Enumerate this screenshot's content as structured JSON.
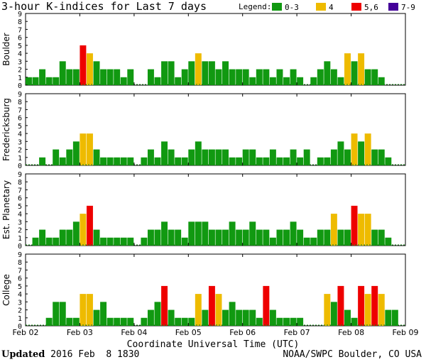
{
  "title": "3-hour K-indices for Last 7 days",
  "legend": {
    "label": "Legend:",
    "items": [
      {
        "label": "0-3",
        "color": "#119911"
      },
      {
        "label": "4",
        "color": "#eebb00"
      },
      {
        "label": "5,6",
        "color": "#ee0000"
      },
      {
        "label": "7-9",
        "color": "#440099"
      }
    ]
  },
  "xlabel": "Coordinate Universal Time (UTC)",
  "footer": {
    "updated_label": "Updated",
    "updated_time": " 2016 Feb  8 1830",
    "credit": "NOAA/SWPC Boulder, CO USA"
  },
  "chart_data": [
    {
      "type": "bar",
      "ylabel": "Boulder",
      "ylim": [
        0,
        9
      ],
      "x_ticks": [
        "Feb 02",
        "Feb 03",
        "Feb 04",
        "Feb 05",
        "Feb 06",
        "Feb 07",
        "Feb 08",
        "Feb 09"
      ],
      "values": [
        1,
        1,
        2,
        1,
        1,
        3,
        2,
        2,
        5,
        4,
        3,
        2,
        2,
        2,
        1,
        2,
        0,
        0,
        2,
        1,
        3,
        3,
        1,
        2,
        3,
        4,
        3,
        3,
        2,
        3,
        2,
        2,
        2,
        1,
        2,
        2,
        1,
        2,
        1,
        2,
        1,
        0,
        1,
        2,
        3,
        2,
        1,
        4,
        3,
        4,
        2,
        2,
        1,
        0,
        0,
        0
      ]
    },
    {
      "type": "bar",
      "ylabel": "Fredericksburg",
      "ylim": [
        0,
        9
      ],
      "x_ticks": [
        "Feb 02",
        "Feb 03",
        "Feb 04",
        "Feb 05",
        "Feb 06",
        "Feb 07",
        "Feb 08",
        "Feb 09"
      ],
      "values": [
        0,
        0,
        1,
        0,
        2,
        1,
        2,
        3,
        4,
        4,
        2,
        1,
        1,
        1,
        1,
        1,
        0,
        1,
        2,
        1,
        3,
        2,
        1,
        1,
        2,
        3,
        2,
        2,
        2,
        2,
        1,
        1,
        2,
        2,
        1,
        1,
        2,
        1,
        1,
        2,
        1,
        2,
        0,
        1,
        1,
        2,
        3,
        2,
        4,
        3,
        4,
        2,
        2,
        1,
        0,
        0
      ]
    },
    {
      "type": "bar",
      "ylabel": "Est. Planetary",
      "ylim": [
        0,
        9
      ],
      "x_ticks": [
        "Feb 02",
        "Feb 03",
        "Feb 04",
        "Feb 05",
        "Feb 06",
        "Feb 07",
        "Feb 08",
        "Feb 09"
      ],
      "values": [
        0,
        1,
        2,
        1,
        1,
        2,
        2,
        3,
        4,
        5,
        2,
        1,
        1,
        1,
        1,
        1,
        0,
        1,
        2,
        2,
        3,
        2,
        2,
        1,
        3,
        3,
        3,
        2,
        2,
        2,
        3,
        2,
        2,
        3,
        2,
        2,
        1,
        2,
        2,
        3,
        2,
        1,
        1,
        2,
        2,
        4,
        2,
        2,
        5,
        4,
        4,
        2,
        2,
        1,
        0,
        0
      ]
    },
    {
      "type": "bar",
      "ylabel": "College",
      "ylim": [
        0,
        9
      ],
      "x_ticks": [
        "Feb 02",
        "Feb 03",
        "Feb 04",
        "Feb 05",
        "Feb 06",
        "Feb 07",
        "Feb 08",
        "Feb 09"
      ],
      "values": [
        0,
        0,
        0,
        1,
        3,
        3,
        1,
        1,
        4,
        4,
        2,
        3,
        1,
        1,
        1,
        1,
        0,
        1,
        2,
        3,
        5,
        2,
        1,
        1,
        1,
        4,
        2,
        5,
        4,
        2,
        3,
        2,
        2,
        2,
        1,
        5,
        2,
        1,
        1,
        1,
        1,
        0,
        0,
        0,
        4,
        3,
        5,
        2,
        1,
        5,
        4,
        5,
        4,
        2,
        2,
        0
      ]
    }
  ]
}
